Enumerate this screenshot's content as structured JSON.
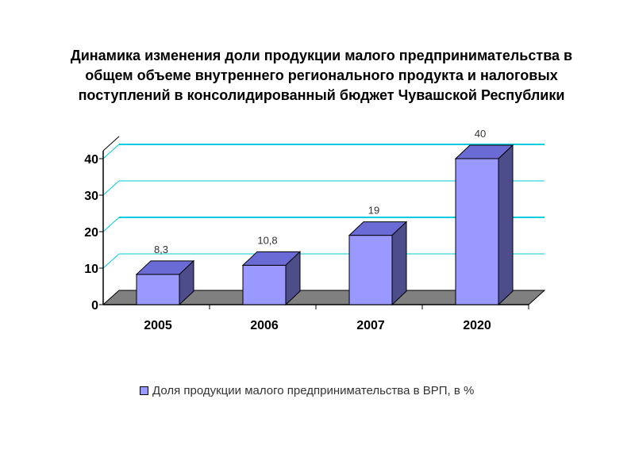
{
  "title": "Динамика изменения доли продукции малого предпринимательства в\nобщем объеме внутреннего регионального продукта и налоговых\nпоступлений в консолидированный бюджет Чувашской Республики",
  "chart_data": {
    "type": "bar",
    "categories": [
      "2005",
      "2006",
      "2007",
      "2020"
    ],
    "series": [
      {
        "name": "Доля продукции малого предпринимательства в ВРП, в %",
        "values": [
          8.3,
          10.8,
          19,
          40
        ]
      }
    ],
    "data_labels": [
      "8,3",
      "10,8",
      "19",
      "40"
    ],
    "y_ticks": [
      "0",
      "10",
      "20",
      "30",
      "40"
    ],
    "ylim": [
      0,
      40
    ],
    "grid": true,
    "three_d": true,
    "legend_position": "bottom"
  },
  "colors": {
    "bar_front": "#9999ff",
    "bar_top": "#6b6bd6",
    "bar_side": "#4d4d8c",
    "gridline": "#00ccdd",
    "floor": "#808080"
  }
}
